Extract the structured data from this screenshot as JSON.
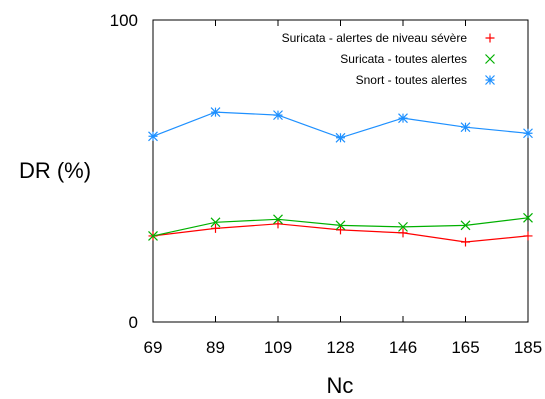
{
  "chart_data": {
    "type": "line",
    "title": "",
    "xlabel": "Nc",
    "ylabel": "DR (%)",
    "categories": [
      "69",
      "89",
      "109",
      "128",
      "146",
      "165",
      "185"
    ],
    "ylim": [
      0,
      100
    ],
    "yticks": [
      "0",
      "100"
    ],
    "grid": false,
    "legend_position": "top-right",
    "series": [
      {
        "name": "Suricata - alertes de niveau sévère",
        "color": "#ff0000",
        "marker": "plus",
        "values": [
          28.5,
          31,
          32.5,
          30.5,
          29.5,
          26.5,
          28.5
        ]
      },
      {
        "name": "Suricata - toutes alertes",
        "color": "#00b000",
        "marker": "x",
        "values": [
          28.5,
          33,
          34,
          32,
          31.5,
          32,
          34.5
        ]
      },
      {
        "name": "Snort - toutes alertes",
        "color": "#1e90ff",
        "marker": "star",
        "values": [
          61.5,
          69.5,
          68.5,
          61,
          67.5,
          64.5,
          62.5
        ]
      }
    ]
  }
}
